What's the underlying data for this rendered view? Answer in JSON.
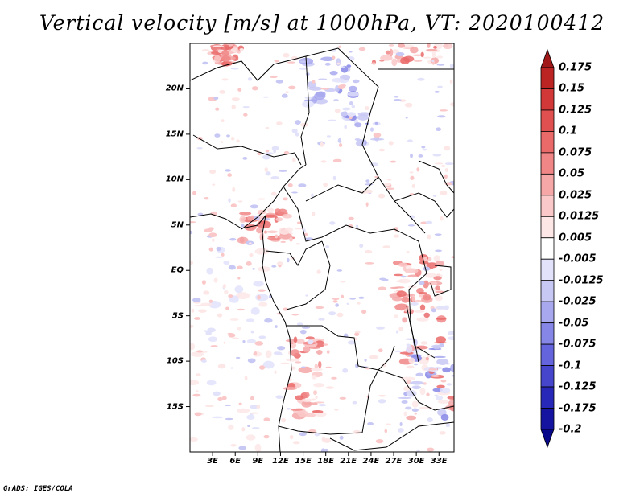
{
  "title": "Vertical velocity [m/s] at 1000hPa, VT: 2020100412",
  "footer": "GrADS: IGES/COLA",
  "map": {
    "lon_range": [
      0,
      35
    ],
    "lat_range": [
      -20,
      25
    ],
    "lat_ticks": [
      "20N",
      "15N",
      "10N",
      "5N",
      "EQ",
      "5S",
      "10S",
      "15S"
    ],
    "lat_tick_values": [
      20,
      15,
      10,
      5,
      0,
      -5,
      -10,
      -15
    ],
    "lon_ticks": [
      "3E",
      "6E",
      "9E",
      "12E",
      "15E",
      "18E",
      "21E",
      "24E",
      "27E",
      "30E",
      "33E"
    ],
    "lon_tick_values": [
      3,
      6,
      9,
      12,
      15,
      18,
      21,
      24,
      27,
      30,
      33
    ]
  },
  "colorbar": {
    "labels": [
      "0.175",
      "0.15",
      "0.125",
      "0.1",
      "0.075",
      "0.05",
      "0.025",
      "0.0125",
      "0.005",
      "-0.005",
      "-0.0125",
      "-0.025",
      "-0.05",
      "-0.075",
      "-0.1",
      "-0.125",
      "-0.175",
      "-0.2"
    ],
    "colors": [
      "#a01818",
      "#bc2424",
      "#d23838",
      "#e05050",
      "#ea6a6a",
      "#f08686",
      "#f5a6a6",
      "#fac8c8",
      "#fde6e6",
      "#ffffff",
      "#e2e2fb",
      "#c8c8f5",
      "#a8a8ee",
      "#8686e6",
      "#6464dc",
      "#4646cc",
      "#2828b8",
      "#1414a0",
      "#08088a"
    ]
  }
}
